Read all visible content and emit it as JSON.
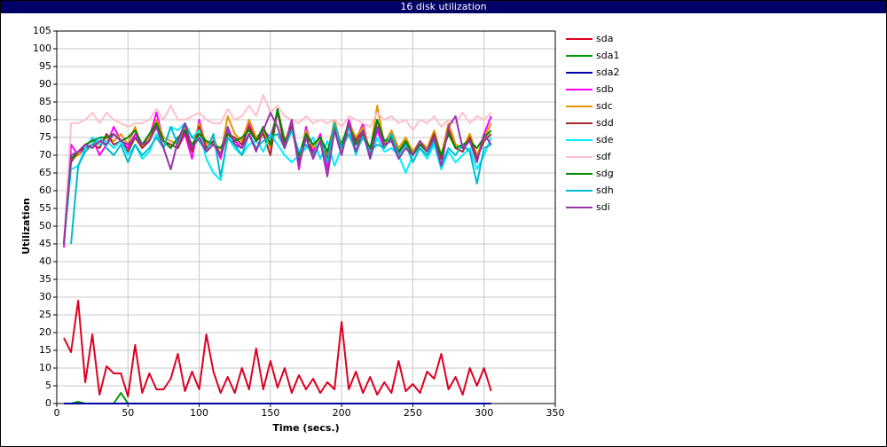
{
  "chart_data": {
    "type": "line",
    "title": "16 disk utilization",
    "x_label": "Time (secs.)",
    "y_label": "Utilization",
    "xlim": [
      0,
      350
    ],
    "xticks": [
      0,
      50,
      100,
      150,
      200,
      250,
      300,
      350
    ],
    "ylim": [
      0,
      105
    ],
    "yticks": [
      0,
      5,
      10,
      15,
      20,
      25,
      30,
      35,
      40,
      45,
      50,
      55,
      60,
      65,
      70,
      75,
      80,
      85,
      90,
      95,
      100,
      105
    ],
    "grid": true,
    "legend": "right",
    "x": [
      5,
      10,
      15,
      20,
      25,
      30,
      35,
      40,
      45,
      50,
      55,
      60,
      65,
      70,
      75,
      80,
      85,
      90,
      95,
      100,
      105,
      110,
      115,
      120,
      125,
      130,
      135,
      140,
      145,
      150,
      155,
      160,
      165,
      170,
      175,
      180,
      185,
      190,
      195,
      200,
      205,
      210,
      215,
      220,
      225,
      230,
      235,
      240,
      245,
      250,
      255,
      260,
      265,
      270,
      275,
      280,
      285,
      290,
      295,
      300,
      305
    ],
    "series": [
      {
        "name": "sdb",
        "color": "#ff00ff",
        "values": [
          44,
          73,
          70,
          72,
          75,
          70,
          73,
          78,
          74,
          72,
          76,
          73,
          75,
          82,
          74,
          73,
          72,
          76,
          69,
          80,
          72,
          74,
          69,
          77,
          74,
          72,
          79,
          74,
          77,
          75,
          82,
          73,
          80,
          66,
          78,
          71,
          76,
          66,
          79,
          71,
          80,
          74,
          79,
          70,
          77,
          72,
          76,
          71,
          74,
          70,
          73,
          72,
          76,
          69,
          78,
          72,
          71,
          75,
          69,
          76,
          81
        ]
      },
      {
        "name": "sdc",
        "color": "#e69500",
        "values": [
          45,
          69,
          70,
          73,
          74,
          73,
          75,
          74,
          76,
          73,
          78,
          72,
          75,
          80,
          75,
          74,
          73,
          78,
          72,
          79,
          73,
          75,
          70,
          81,
          76,
          74,
          80,
          75,
          77,
          72,
          83,
          74,
          79,
          69,
          77,
          72,
          75,
          70,
          80,
          72,
          79,
          75,
          78,
          71,
          84,
          73,
          77,
          72,
          75,
          71,
          74,
          72,
          77,
          70,
          79,
          73,
          72,
          76,
          70,
          75,
          79
        ]
      },
      {
        "name": "sdd",
        "color": "#a52a2a",
        "values": [
          45,
          68,
          71,
          72,
          73,
          72,
          76,
          73,
          74,
          71,
          75,
          72,
          74,
          79,
          74,
          73,
          72,
          77,
          71,
          78,
          72,
          74,
          70,
          76,
          75,
          73,
          78,
          74,
          76,
          70,
          83,
          72,
          78,
          68,
          76,
          70,
          74,
          69,
          78,
          71,
          78,
          74,
          77,
          70,
          80,
          72,
          75,
          70,
          74,
          70,
          73,
          71,
          76,
          69,
          77,
          72,
          71,
          75,
          69,
          74,
          76
        ]
      },
      {
        "name": "sde",
        "color": "#00eeff",
        "values": [
          45,
          66,
          67,
          72,
          75,
          73,
          74,
          72,
          74,
          70,
          73,
          69,
          71,
          76,
          72,
          78,
          77,
          79,
          75,
          77,
          69,
          65,
          63,
          75,
          72,
          70,
          73,
          74,
          71,
          76,
          73,
          70,
          68,
          70,
          72,
          75,
          69,
          74,
          67,
          72,
          78,
          70,
          76,
          69,
          75,
          71,
          72,
          70,
          65,
          70,
          72,
          69,
          73,
          66,
          71,
          68,
          70,
          72,
          66,
          70,
          75
        ]
      },
      {
        "name": "sdf",
        "color": "#ffc0cb",
        "values": [
          45,
          79,
          79,
          80,
          82,
          79,
          82,
          80,
          79,
          78,
          79,
          79,
          80,
          83,
          80,
          84,
          80,
          80,
          81,
          82,
          80,
          79,
          79,
          83,
          80,
          81,
          84,
          81,
          87,
          82,
          84,
          81,
          80,
          79,
          81,
          79,
          80,
          79,
          80,
          78,
          81,
          80,
          79,
          78,
          82,
          80,
          81,
          79,
          80,
          77,
          80,
          79,
          81,
          78,
          80,
          79,
          82,
          79,
          81,
          80,
          82
        ]
      },
      {
        "name": "sdg",
        "color": "#008800",
        "values": [
          45,
          69,
          71,
          73,
          74,
          75,
          75,
          76,
          74,
          75,
          77,
          73,
          76,
          79,
          74,
          72,
          75,
          77,
          73,
          76,
          74,
          73,
          72,
          76,
          74,
          75,
          77,
          74,
          78,
          73,
          83,
          74,
          77,
          70,
          76,
          73,
          75,
          71,
          78,
          73,
          79,
          73,
          76,
          72,
          80,
          74,
          75,
          71,
          74,
          70,
          73,
          71,
          75,
          70,
          76,
          72,
          73,
          74,
          72,
          75,
          77
        ]
      },
      {
        "name": "sdh",
        "color": "#00bbcc",
        "values": [
          null,
          45,
          67,
          71,
          73,
          75,
          72,
          70,
          73,
          68,
          73,
          70,
          72,
          75,
          72,
          78,
          73,
          79,
          75,
          74,
          71,
          76,
          64,
          75,
          73,
          70,
          76,
          72,
          74,
          75,
          76,
          72,
          77,
          71,
          73,
          70,
          74,
          68,
          79,
          72,
          76,
          71,
          75,
          71,
          73,
          72,
          76,
          70,
          73,
          68,
          72,
          70,
          74,
          67,
          72,
          70,
          73,
          71,
          62,
          72,
          73
        ]
      },
      {
        "name": "sdi",
        "color": "#9933aa",
        "values": [
          45,
          70,
          71,
          73,
          72,
          74,
          73,
          76,
          74,
          73,
          75,
          73,
          74,
          78,
          72,
          66,
          74,
          79,
          72,
          75,
          71,
          73,
          70,
          78,
          73,
          72,
          76,
          71,
          77,
          82,
          78,
          72,
          80,
          67,
          75,
          69,
          74,
          64,
          77,
          70,
          79,
          71,
          77,
          69,
          78,
          73,
          74,
          69,
          72,
          70,
          74,
          71,
          75,
          67,
          78,
          81,
          72,
          74,
          68,
          76,
          73
        ]
      },
      {
        "name": "sda",
        "color": "#dd0022",
        "values": [
          18.5,
          14.5,
          29,
          6,
          19.5,
          2.5,
          10.5,
          8.5,
          8.5,
          2,
          16.5,
          3,
          8.5,
          4,
          4,
          7,
          14,
          3.5,
          9,
          4,
          19.5,
          9,
          3,
          7.5,
          3,
          10,
          4,
          15.5,
          4,
          12,
          4.5,
          10,
          3,
          8,
          4,
          7,
          3,
          6,
          4,
          23,
          4,
          9,
          3,
          7.5,
          2.5,
          6,
          3,
          12,
          3.5,
          5.5,
          3,
          9,
          7,
          14,
          4,
          7.5,
          2.5,
          10,
          5,
          10,
          3.5
        ]
      },
      {
        "name": "sda1",
        "color": "#009900",
        "values": [
          0,
          0,
          0.5,
          0,
          0,
          0,
          0,
          0,
          3,
          0,
          0,
          0,
          0,
          0,
          0,
          0,
          0,
          0,
          0,
          0,
          0,
          0,
          0,
          0,
          0,
          0,
          0,
          0,
          0,
          0,
          0,
          0,
          0,
          0,
          0,
          0,
          0,
          0,
          0,
          0,
          0,
          0,
          0,
          0,
          0,
          0,
          0,
          0,
          0,
          0,
          0,
          0,
          0,
          0,
          0,
          0,
          0,
          0,
          0,
          0,
          0
        ]
      },
      {
        "name": "sda2",
        "color": "#0000aa",
        "values": [
          0,
          0,
          0,
          0,
          0,
          0,
          0,
          0,
          0,
          0,
          0,
          0,
          0,
          0,
          0,
          0,
          0,
          0,
          0,
          0,
          0,
          0,
          0,
          0,
          0,
          0,
          0,
          0,
          0,
          0,
          0,
          0,
          0,
          0,
          0,
          0,
          0,
          0,
          0,
          0,
          0,
          0,
          0,
          0,
          0,
          0,
          0,
          0,
          0,
          0,
          0,
          0,
          0,
          0,
          0,
          0,
          0,
          0,
          0,
          0,
          0
        ]
      }
    ],
    "legend_order": [
      "sda",
      "sda1",
      "sda2",
      "sdb",
      "sdc",
      "sdd",
      "sde",
      "sdf",
      "sdg",
      "sdh",
      "sdi"
    ]
  }
}
